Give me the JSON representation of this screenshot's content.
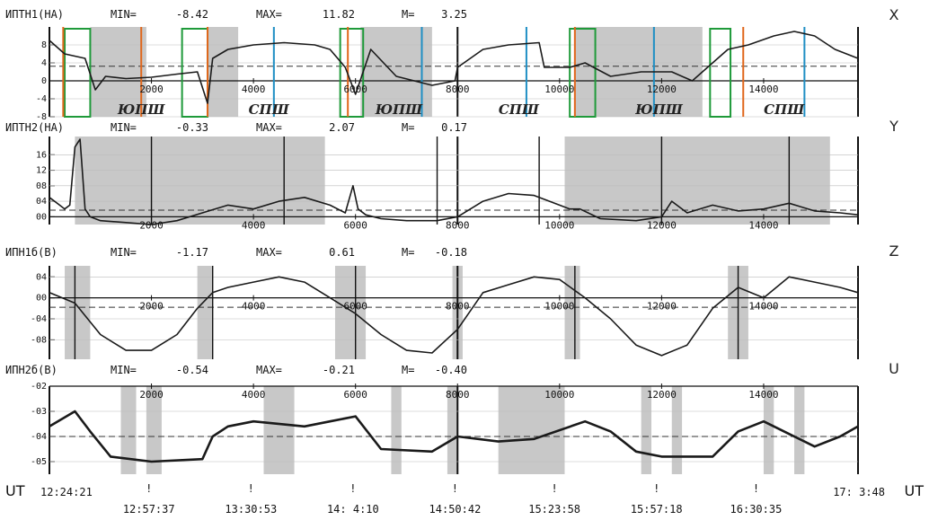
{
  "chart_data": [
    {
      "type": "line",
      "panel": "X",
      "side_label": "X",
      "name": "ИПТН1(НА)",
      "min_label": "MIN=",
      "min_value": "-8.42",
      "max_label": "MAX=",
      "max_value": "11.82",
      "mean_label": "M=",
      "mean_value": "3.25",
      "mean": 3.25,
      "ylim": [
        -8,
        12
      ],
      "yticks": [
        8,
        4,
        0,
        -4,
        -8
      ],
      "ytick_labels": [
        "8",
        "4",
        "0",
        "-4",
        "-8"
      ],
      "x_axis_at": 0,
      "x": [
        0,
        300,
        700,
        900,
        1100,
        1500,
        2000,
        2500,
        2900,
        3100,
        3200,
        3500,
        4000,
        4600,
        5200,
        5500,
        5800,
        6000,
        6300,
        6800,
        7500,
        7950,
        8000,
        8500,
        9000,
        9600,
        9700,
        10200,
        10500,
        11000,
        11600,
        12200,
        12600,
        12900,
        13300,
        13700,
        14200,
        14600,
        15000,
        15400,
        15850
      ],
      "y": [
        9,
        6,
        5,
        -2,
        1,
        0.5,
        0.8,
        1.5,
        2,
        -5,
        5,
        7,
        8,
        8.5,
        8,
        7,
        3,
        -3,
        7,
        1,
        -1,
        0,
        3,
        7,
        8,
        8.5,
        3,
        3,
        4,
        1,
        2,
        2,
        0,
        3,
        7,
        8,
        10,
        11,
        10,
        7,
        5
      ],
      "regions": [
        {
          "label": "ЮПШ",
          "x": 1800
        },
        {
          "label": "СПШ",
          "x": 4300
        },
        {
          "label": "ЮПШ",
          "x": 6850
        },
        {
          "label": "СПШ",
          "x": 9200
        },
        {
          "label": "ЮПШ",
          "x": 11950
        },
        {
          "label": "СПШ",
          "x": 14400
        }
      ]
    },
    {
      "type": "line",
      "panel": "Y",
      "side_label": "Y",
      "name": "ИПТН2(НА)",
      "min_label": "MIN=",
      "min_value": "-0.33",
      "max_label": "MAX=",
      "max_value": "2.07",
      "mean_label": "M=",
      "mean_value": "0.17",
      "mean": 0.17,
      "ylim": [
        -0.2,
        2.07
      ],
      "yticks": [
        1.6,
        1.2,
        0.8,
        0.4,
        0.0
      ],
      "ytick_labels": [
        "16",
        "12",
        "08",
        "04",
        "00"
      ],
      "x_axis_at": 0,
      "x": [
        0,
        200,
        300,
        400,
        500,
        600,
        700,
        800,
        1000,
        1500,
        2000,
        2500,
        3000,
        3500,
        4000,
        4500,
        5000,
        5500,
        5800,
        5950,
        6050,
        6200,
        6500,
        7000,
        7600,
        8000,
        8500,
        9000,
        9500,
        10000,
        10200,
        10400,
        10800,
        11500,
        12000,
        12200,
        12500,
        13000,
        13500,
        14000,
        14500,
        15000,
        15500,
        15850
      ],
      "y": [
        0.5,
        0.3,
        0.2,
        0.3,
        1.8,
        2.0,
        0.2,
        0.0,
        -0.1,
        -0.15,
        -0.2,
        -0.1,
        0.1,
        0.3,
        0.2,
        0.4,
        0.5,
        0.3,
        0.1,
        0.8,
        0.2,
        0.05,
        -0.05,
        -0.1,
        -0.1,
        0.0,
        0.4,
        0.6,
        0.55,
        0.3,
        0.2,
        0.2,
        -0.05,
        -0.1,
        0.0,
        0.4,
        0.1,
        0.3,
        0.15,
        0.2,
        0.35,
        0.15,
        0.1,
        0.05
      ]
    },
    {
      "type": "line",
      "panel": "Z",
      "side_label": "Z",
      "name": "ИПН1б(В)",
      "min_label": "MIN=",
      "min_value": "-1.17",
      "max_label": "MAX=",
      "max_value": "0.61",
      "mean_label": "M=",
      "mean_value": "-0.18",
      "mean": -0.18,
      "ylim": [
        -1.17,
        0.61
      ],
      "yticks": [
        0.4,
        0.0,
        -0.4,
        -0.8
      ],
      "ytick_labels": [
        "04",
        "00",
        "-04",
        "-08"
      ],
      "x_axis_at": 0,
      "x": [
        0,
        500,
        1000,
        1500,
        2000,
        2500,
        2900,
        3200,
        3500,
        4000,
        4500,
        5000,
        5500,
        6000,
        6500,
        7000,
        7500,
        8000,
        8500,
        9000,
        9500,
        10000,
        10500,
        11000,
        11500,
        12000,
        12500,
        13000,
        13500,
        14000,
        14500,
        15000,
        15500,
        15850
      ],
      "y": [
        0.1,
        -0.1,
        -0.7,
        -1.0,
        -1.0,
        -0.7,
        -0.2,
        0.1,
        0.2,
        0.3,
        0.4,
        0.3,
        0.0,
        -0.3,
        -0.7,
        -1.0,
        -1.05,
        -0.6,
        0.1,
        0.25,
        0.4,
        0.35,
        0.0,
        -0.4,
        -0.9,
        -1.1,
        -0.9,
        -0.2,
        0.2,
        0.0,
        0.4,
        0.3,
        0.2,
        0.1
      ]
    },
    {
      "type": "line",
      "panel": "U",
      "side_label": "U",
      "name": "ИПН2б(В)",
      "min_label": "MIN=",
      "min_value": "-0.54",
      "max_label": "MAX=",
      "max_value": "-0.21",
      "mean_label": "M=",
      "mean_value": "-0.40",
      "mean": -0.4,
      "ylim": [
        -0.55,
        -0.2
      ],
      "yticks": [
        -0.2,
        -0.3,
        -0.4,
        -0.5
      ],
      "ytick_labels": [
        "-02",
        "-03",
        "-04",
        "-05"
      ],
      "x_axis_at": -0.2,
      "x": [
        0,
        500,
        800,
        1200,
        2000,
        3000,
        3200,
        3500,
        4000,
        5000,
        5500,
        6000,
        6500,
        7500,
        8000,
        8800,
        9500,
        10500,
        11000,
        11500,
        12000,
        13000,
        13500,
        14000,
        14500,
        15000,
        15500,
        15850
      ],
      "y": [
        -0.36,
        -0.3,
        -0.38,
        -0.48,
        -0.5,
        -0.49,
        -0.4,
        -0.36,
        -0.34,
        -0.36,
        -0.34,
        -0.32,
        -0.45,
        -0.46,
        -0.4,
        -0.42,
        -0.41,
        -0.34,
        -0.38,
        -0.46,
        -0.48,
        -0.48,
        -0.38,
        -0.34,
        -0.39,
        -0.44,
        -0.4,
        -0.36
      ]
    }
  ],
  "x_axis": {
    "xlim": [
      0,
      15850
    ],
    "ticks": [
      2000,
      4000,
      6000,
      8000,
      10000,
      12000,
      14000
    ],
    "tick_labels": [
      "2000",
      "4000",
      "6000",
      "8000",
      "10000",
      "12000",
      "14000"
    ]
  },
  "ut": {
    "label_left": "UT",
    "label_right": "UT",
    "start": "12:24:21",
    "end": "17: 3:48",
    "marks": [
      {
        "x": 1950,
        "label": "12:57:37"
      },
      {
        "x": 3950,
        "label": "13:30:53"
      },
      {
        "x": 5950,
        "label": "14: 4:10"
      },
      {
        "x": 7950,
        "label": "14:50:42"
      },
      {
        "x": 9900,
        "label": "15:23:58"
      },
      {
        "x": 11900,
        "label": "15:57:18"
      },
      {
        "x": 13850,
        "label": "16:30:35"
      }
    ]
  },
  "colors": {
    "trace": "#1a1a1a",
    "shade": "#c8c8c8",
    "green_box": "#1f9a3a",
    "orange_line": "#e0671c",
    "blue_line": "#1f8fc4"
  }
}
